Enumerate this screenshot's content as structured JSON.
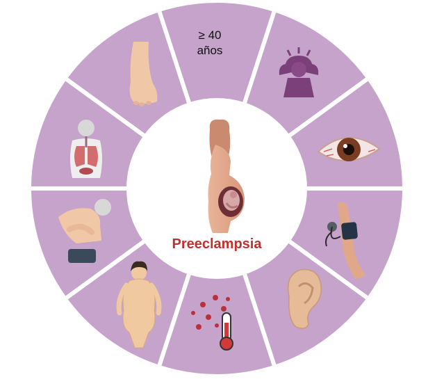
{
  "center": {
    "title": "Preeclampsia",
    "title_color": "#c0302e",
    "icon": "pregnant-woman-fetus-icon"
  },
  "colors": {
    "segment": "#c5a3cb",
    "divider": "#ffffff",
    "center_fill": "#ffffff"
  },
  "segments": [
    {
      "name": "age-segment",
      "icon": "none",
      "lines": [
        "≥ 40",
        "años"
      ]
    },
    {
      "name": "headache-segment",
      "icon": "headache-icon"
    },
    {
      "name": "eye-segment",
      "icon": "red-eye-icon"
    },
    {
      "name": "blood-pressure-segment",
      "icon": "blood-pressure-cuff-icon"
    },
    {
      "name": "ear-segment",
      "icon": "ear-icon"
    },
    {
      "name": "fever-virus-segment",
      "icon": "thermometer-virus-icon"
    },
    {
      "name": "obesity-segment",
      "icon": "obese-woman-icon"
    },
    {
      "name": "abdominal-pain-segment",
      "icon": "abdominal-pain-icon"
    },
    {
      "name": "lungs-segment",
      "icon": "lungs-organs-icon"
    },
    {
      "name": "swollen-foot-segment",
      "icon": "swollen-foot-icon"
    }
  ]
}
